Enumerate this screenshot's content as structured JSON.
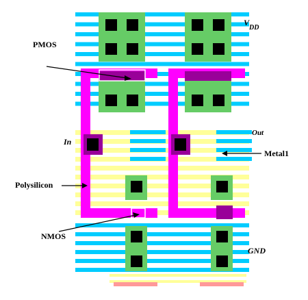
{
  "labels": {
    "pmos": "PMOS",
    "nmos": "NMOS",
    "polysilicon": "Polysilicon",
    "input": "In",
    "output": "Out",
    "metal1": "Metal1",
    "vdd_v": "V",
    "vdd_sub": "DD",
    "gnd": "GND"
  },
  "colors": {
    "metal1_stripe": "#00ccff",
    "poly_stripe": "#ffff99",
    "diffusion": "#66cc66",
    "polysilicon": "#ff00ff",
    "gate_overlap": "#990099",
    "contact": "#000000",
    "contact_pad": "#cc66cc",
    "pink_stripe": "#ff9999",
    "background": "#ffffff"
  }
}
